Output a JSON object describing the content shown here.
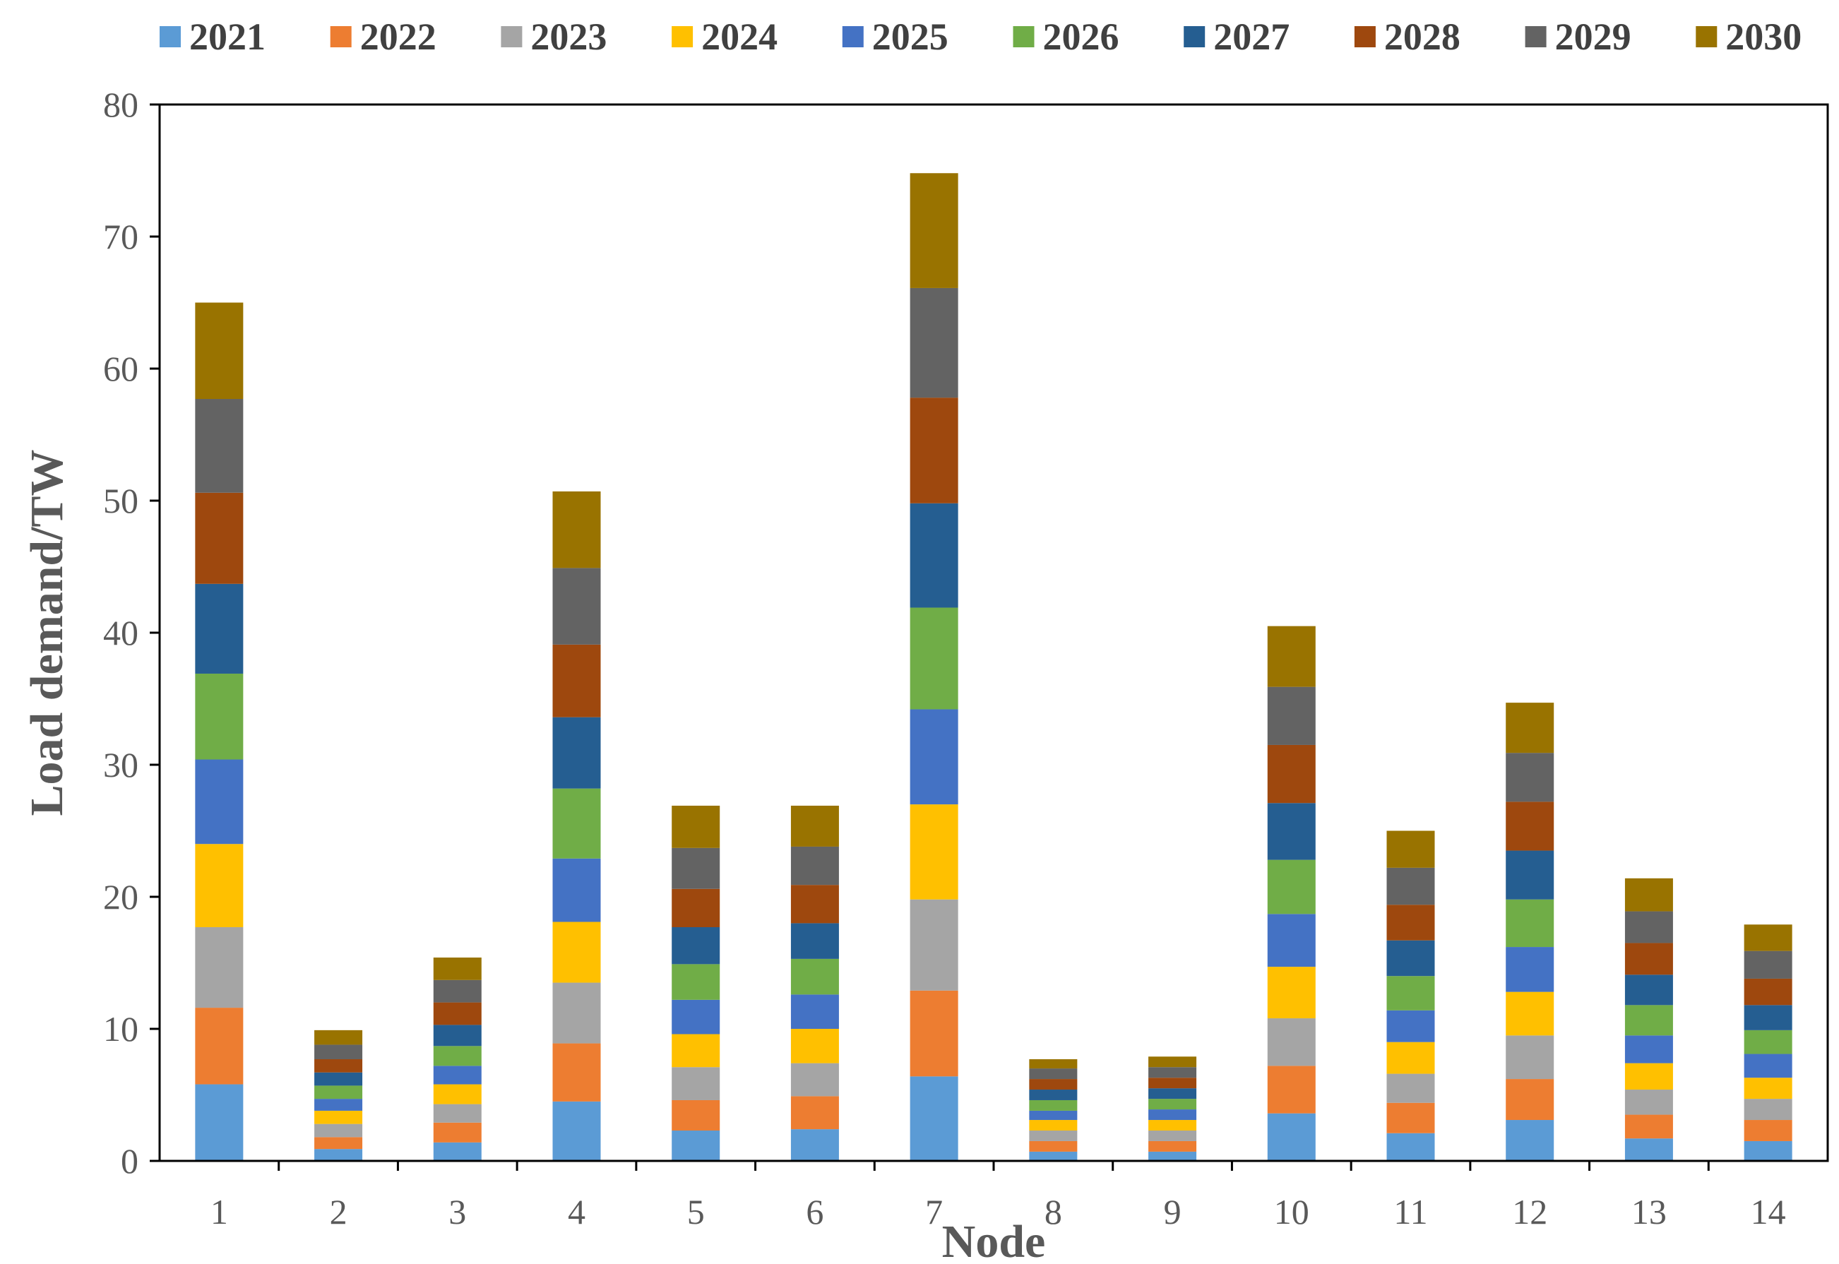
{
  "chart_data": {
    "type": "bar",
    "stacked": true,
    "title": "",
    "xlabel": "Node",
    "ylabel": "Load demand/TW",
    "ylim": [
      0,
      80
    ],
    "yticks": [
      0,
      10,
      20,
      30,
      40,
      50,
      60,
      70,
      80
    ],
    "legend_position": "top",
    "categories": [
      "1",
      "2",
      "3",
      "4",
      "5",
      "6",
      "7",
      "8",
      "9",
      "10",
      "11",
      "12",
      "13",
      "14"
    ],
    "series": [
      {
        "name": "2021",
        "color": "#5B9BD5",
        "values": [
          5.8,
          0.9,
          1.4,
          4.5,
          2.3,
          2.4,
          6.4,
          0.7,
          0.7,
          3.6,
          2.1,
          3.1,
          1.7,
          1.5
        ]
      },
      {
        "name": "2022",
        "color": "#ED7D31",
        "values": [
          5.8,
          0.9,
          1.5,
          4.4,
          2.3,
          2.5,
          6.5,
          0.8,
          0.8,
          3.6,
          2.3,
          3.1,
          1.8,
          1.6
        ]
      },
      {
        "name": "2023",
        "color": "#A5A5A5",
        "values": [
          6.1,
          1.0,
          1.4,
          4.6,
          2.5,
          2.5,
          6.9,
          0.8,
          0.8,
          3.6,
          2.2,
          3.3,
          1.9,
          1.6
        ]
      },
      {
        "name": "2024",
        "color": "#FFC000",
        "values": [
          6.3,
          1.0,
          1.5,
          4.6,
          2.5,
          2.6,
          7.2,
          0.8,
          0.8,
          3.9,
          2.4,
          3.3,
          2.0,
          1.6
        ]
      },
      {
        "name": "2025",
        "color": "#4472C4",
        "values": [
          6.4,
          0.9,
          1.4,
          4.8,
          2.6,
          2.6,
          7.2,
          0.7,
          0.8,
          4.0,
          2.4,
          3.4,
          2.1,
          1.8
        ]
      },
      {
        "name": "2026",
        "color": "#70AD47",
        "values": [
          6.5,
          1.0,
          1.5,
          5.3,
          2.7,
          2.7,
          7.7,
          0.8,
          0.8,
          4.1,
          2.6,
          3.6,
          2.3,
          1.8
        ]
      },
      {
        "name": "2027",
        "color": "#255E91",
        "values": [
          6.8,
          1.0,
          1.6,
          5.4,
          2.8,
          2.7,
          7.9,
          0.8,
          0.8,
          4.3,
          2.7,
          3.7,
          2.3,
          1.9
        ]
      },
      {
        "name": "2028",
        "color": "#9E480E",
        "values": [
          6.9,
          1.0,
          1.7,
          5.5,
          2.9,
          2.9,
          8.0,
          0.8,
          0.8,
          4.4,
          2.7,
          3.7,
          2.4,
          2.0
        ]
      },
      {
        "name": "2029",
        "color": "#636363",
        "values": [
          7.1,
          1.1,
          1.7,
          5.8,
          3.1,
          2.9,
          8.3,
          0.8,
          0.8,
          4.4,
          2.8,
          3.7,
          2.4,
          2.1
        ]
      },
      {
        "name": "2030",
        "color": "#997300",
        "values": [
          7.3,
          1.1,
          1.7,
          5.8,
          3.2,
          3.1,
          8.7,
          0.7,
          0.8,
          4.6,
          2.8,
          3.8,
          2.5,
          2.0
        ]
      }
    ]
  }
}
